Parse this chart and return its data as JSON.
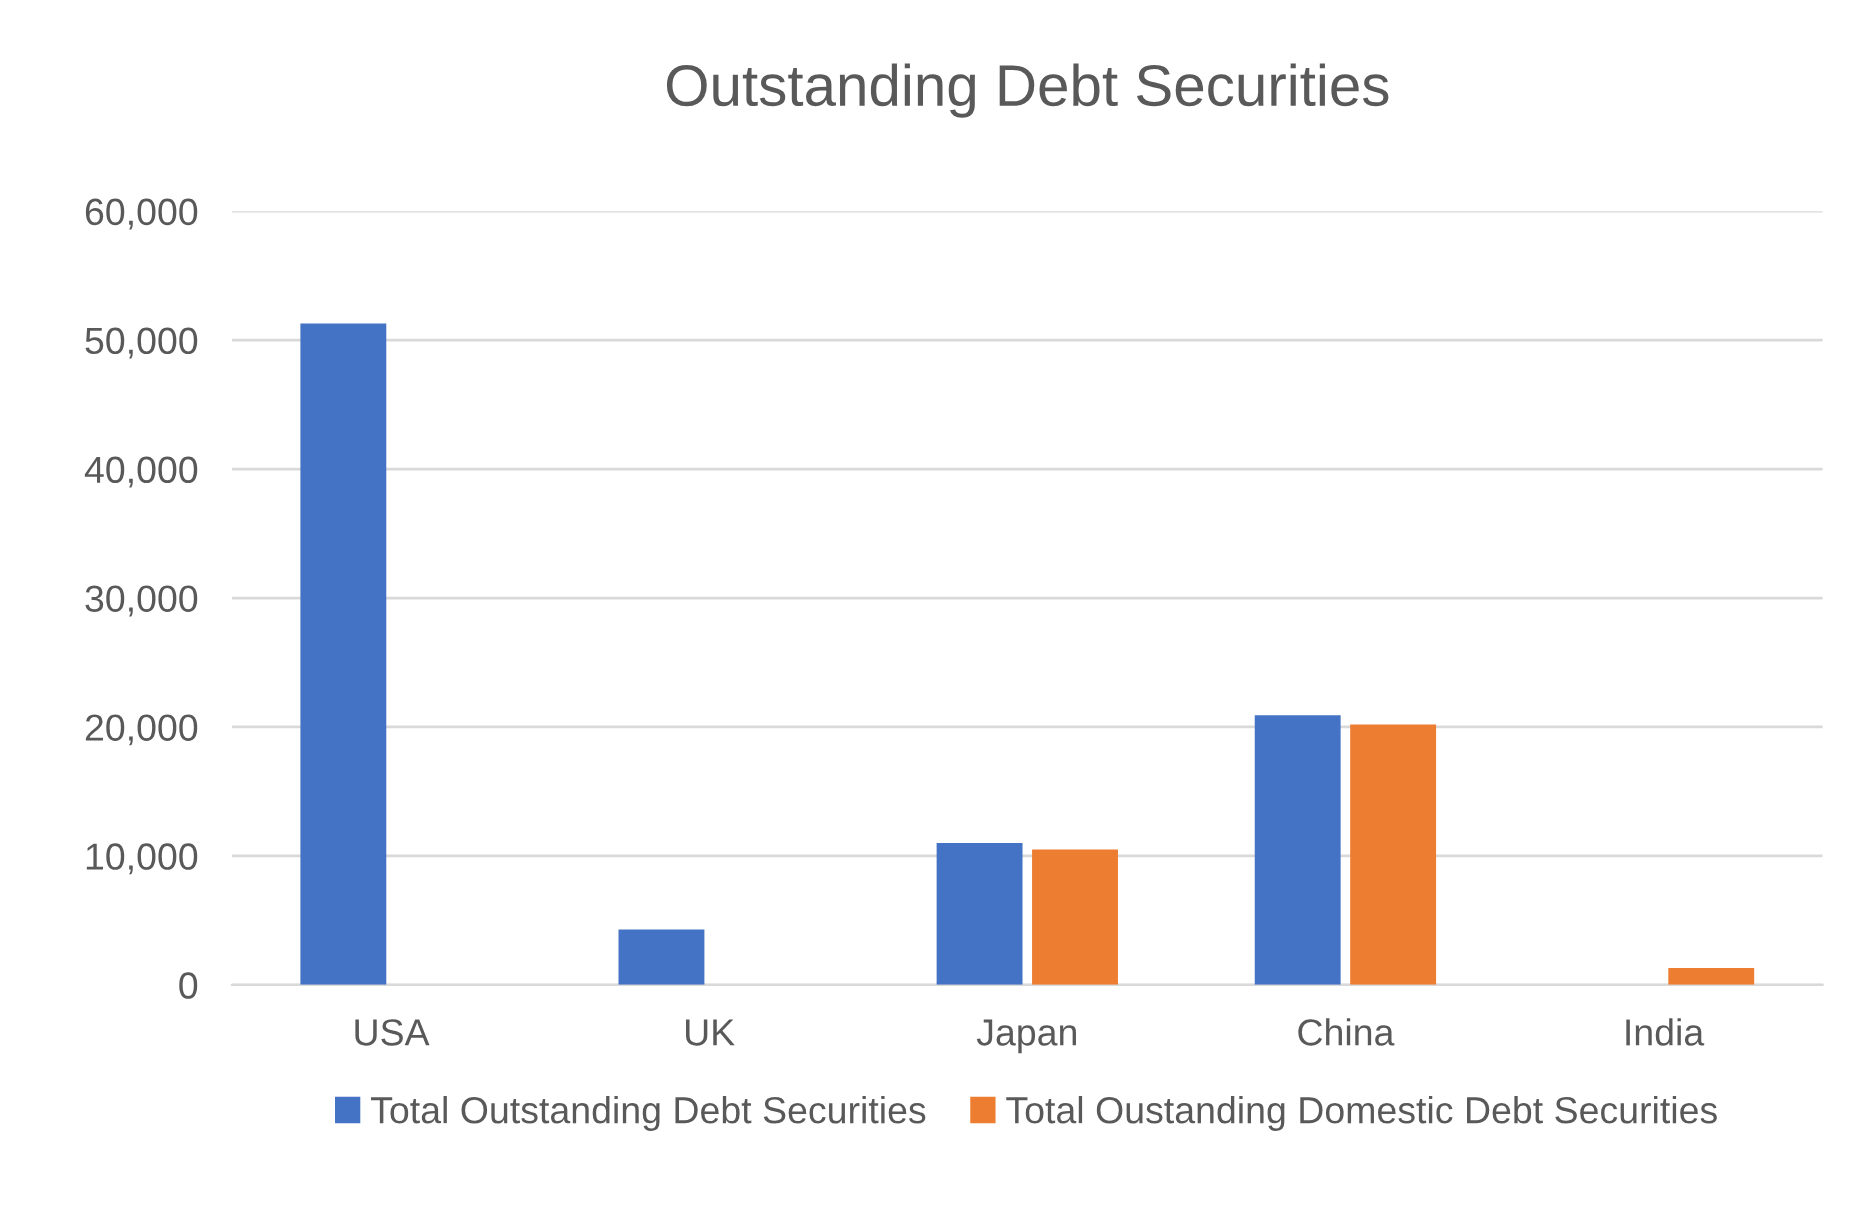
{
  "chart_data": {
    "type": "bar",
    "title": "Outstanding Debt Securities",
    "categories": [
      "USA",
      "UK",
      "Japan",
      "China",
      "India"
    ],
    "series": [
      {
        "name": "Total Outstanding Debt Securities",
        "color": "#4472c4",
        "values": [
          51300,
          4300,
          11000,
          20900,
          null
        ]
      },
      {
        "name": "Total Oustanding Domestic Debt Securities",
        "color": "#ed7d31",
        "values": [
          null,
          null,
          10500,
          20200,
          1300
        ]
      }
    ],
    "ylim": [
      0,
      60000
    ],
    "yticks": [
      {
        "value": 0,
        "label": "0"
      },
      {
        "value": 10000,
        "label": "10,000"
      },
      {
        "value": 20000,
        "label": "20,000"
      },
      {
        "value": 30000,
        "label": "30,000"
      },
      {
        "value": 40000,
        "label": "40,000"
      },
      {
        "value": 50000,
        "label": "50,000"
      },
      {
        "value": 60000,
        "label": "60,000"
      }
    ],
    "grid": "y",
    "legend": "bottom"
  }
}
